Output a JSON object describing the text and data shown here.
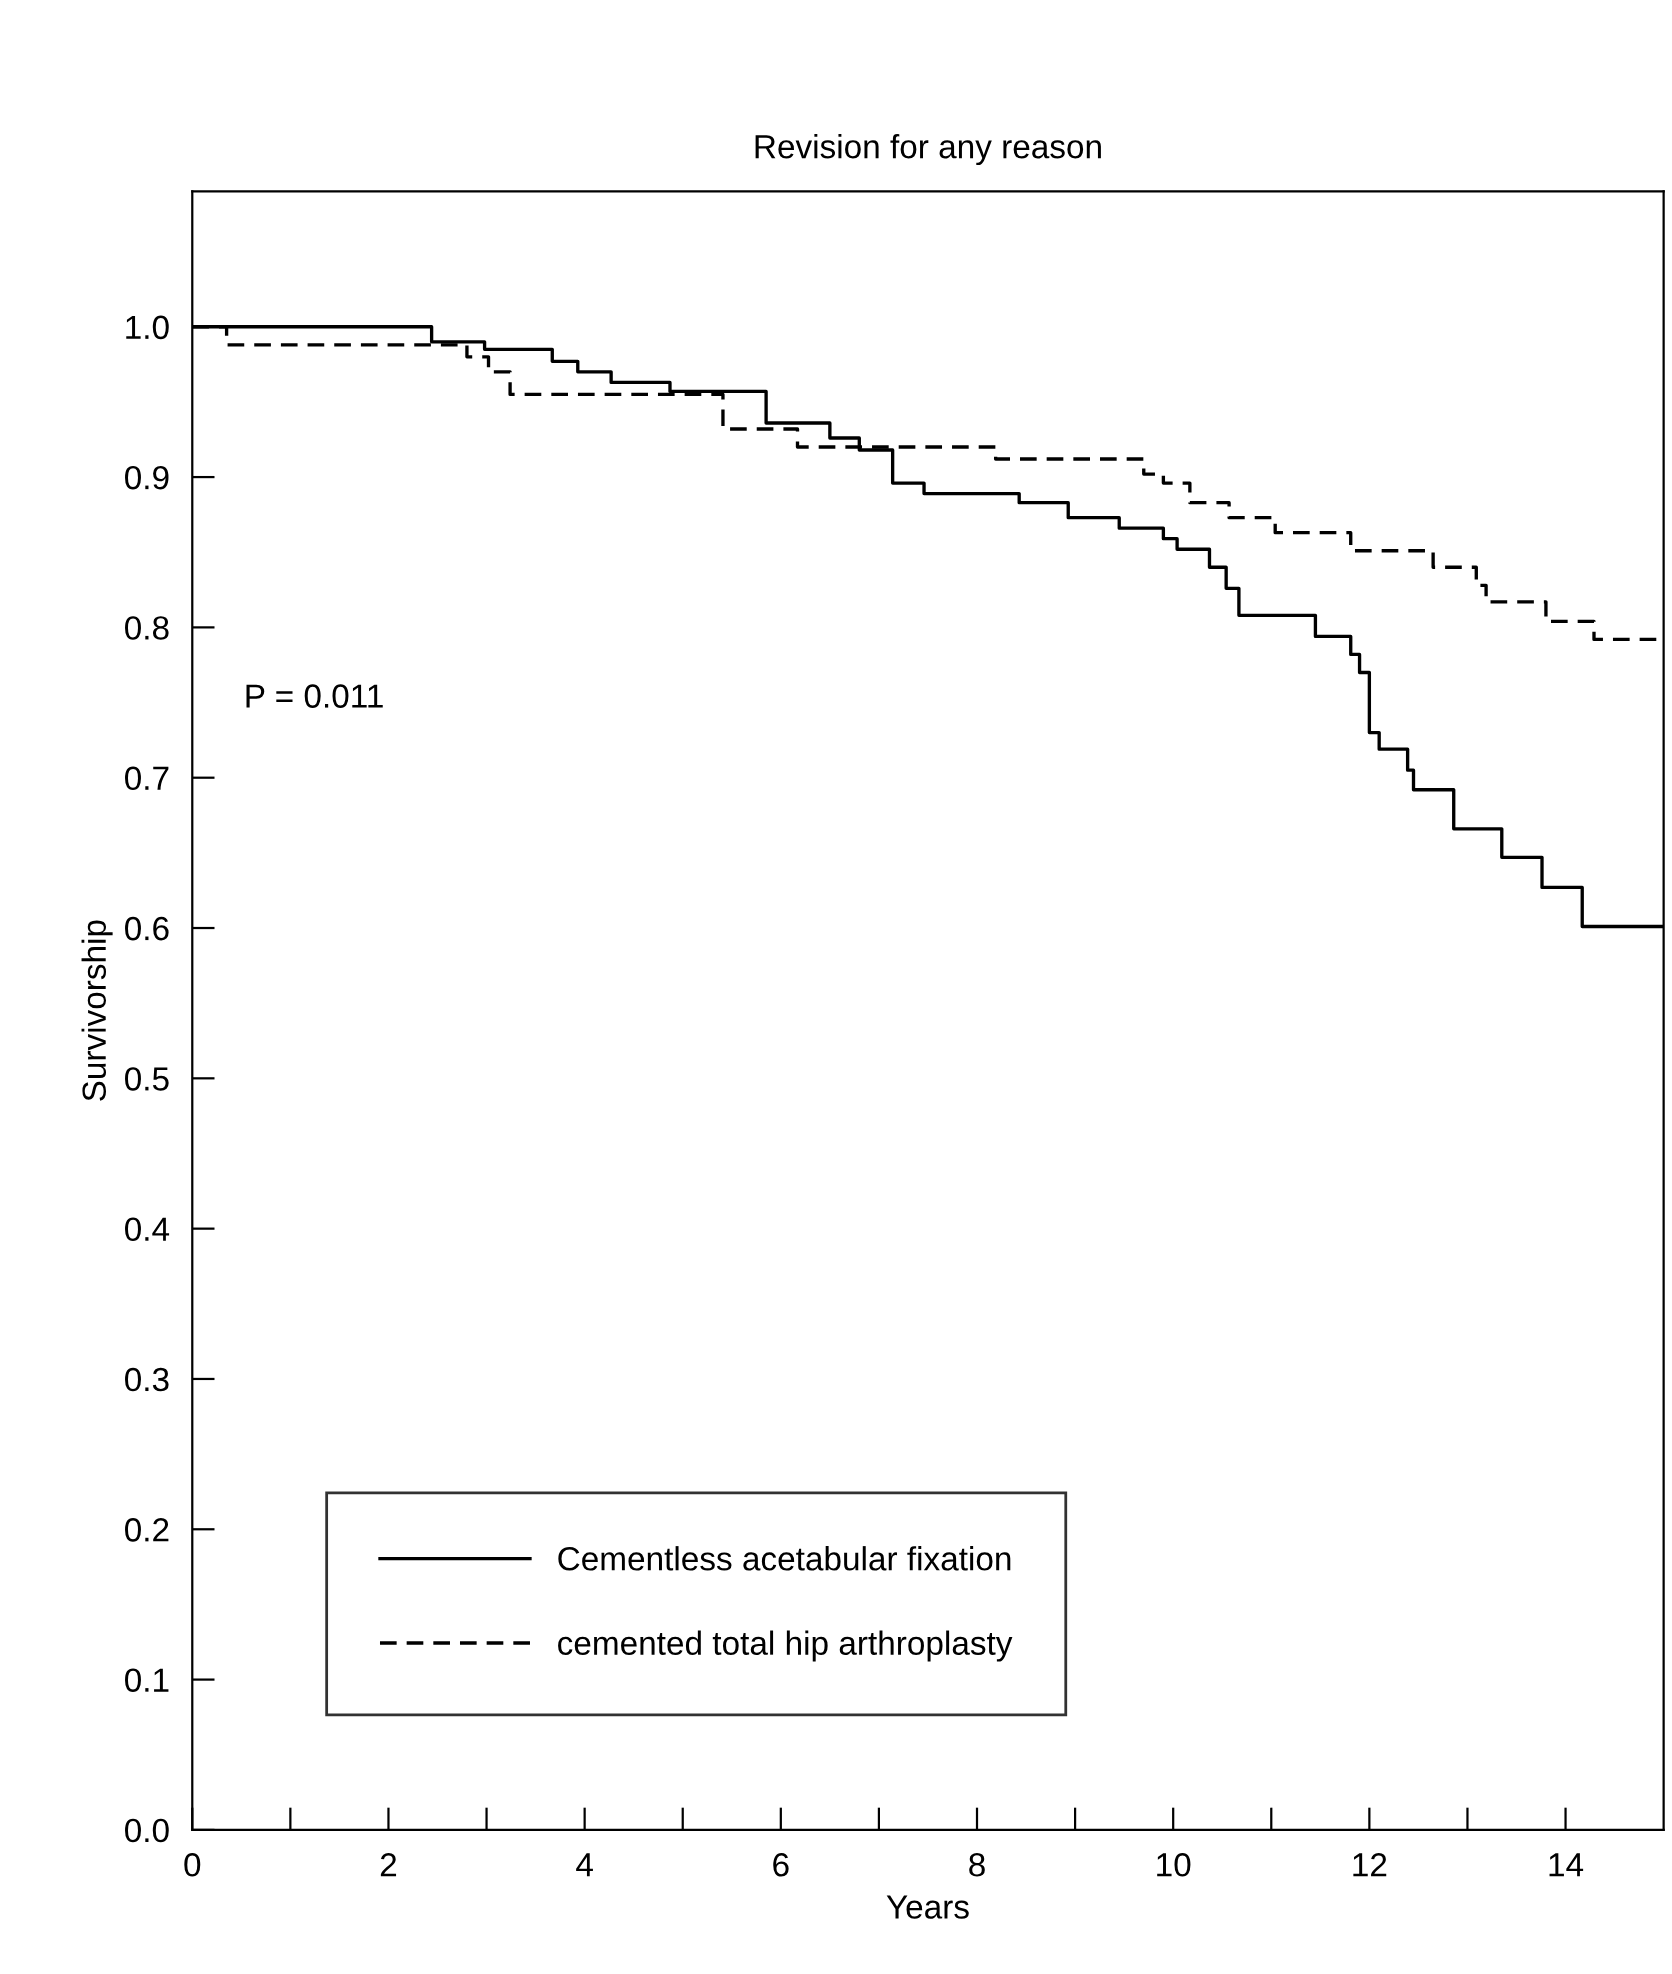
{
  "chart_data": {
    "type": "step",
    "title": "Revision for any reason",
    "xlabel": "Years",
    "ylabel": "Survivorship",
    "annotations": [
      "P = 0.011"
    ],
    "xlim": [
      0,
      15
    ],
    "ylim": [
      0,
      1.09
    ],
    "xticks": [
      0,
      {
        "value": 1,
        "label": null
      },
      2,
      {
        "value": 3,
        "label": null
      },
      4,
      {
        "value": 5,
        "label": null
      },
      6,
      {
        "value": 7,
        "label": null
      },
      8,
      {
        "value": 9,
        "label": null
      },
      10,
      {
        "value": 11,
        "label": null
      },
      12,
      {
        "value": 13,
        "label": null
      },
      14
    ],
    "yticks": [
      {
        "value": 0,
        "label": "0.0"
      },
      0.1,
      0.2,
      0.3,
      0.4,
      0.5,
      0.6,
      0.7,
      0.8,
      0.9,
      {
        "value": 1,
        "label": "1.0"
      }
    ],
    "grid": false,
    "legend": "bottom left",
    "marker": "none",
    "series": [
      {
        "name": "Cementless acetabular fixation",
        "color": "#000000",
        "line_style": "solid",
        "x": [
          0,
          2.44,
          2.98,
          3.67,
          3.93,
          4.27,
          4.87,
          5.85,
          6.5,
          6.8,
          7.14,
          7.46,
          8.43,
          8.93,
          9.45,
          9.9,
          10.04,
          10.37,
          10.54,
          10.67,
          11.45,
          11.81,
          11.9,
          12.0,
          12.1,
          12.39,
          12.45,
          12.86,
          13.35,
          13.76,
          14.17,
          15
        ],
        "values": [
          1.0,
          0.99,
          0.985,
          0.977,
          0.97,
          0.963,
          0.957,
          0.936,
          0.926,
          0.918,
          0.896,
          0.889,
          0.883,
          0.873,
          0.866,
          0.859,
          0.852,
          0.84,
          0.826,
          0.808,
          0.794,
          0.782,
          0.77,
          0.73,
          0.719,
          0.705,
          0.692,
          0.666,
          0.647,
          0.627,
          0.601,
          0.601
        ]
      },
      {
        "name": "cemented total hip arthroplasty",
        "color": "#000000",
        "line_style": "dashed",
        "x": [
          0,
          0.35,
          2.8,
          3.02,
          3.24,
          5.41,
          6.17,
          8.19,
          9.7,
          9.9,
          10.17,
          10.57,
          11.04,
          11.81,
          12.65,
          13.09,
          13.19,
          13.8,
          14.29,
          15
        ],
        "values": [
          1.0,
          0.988,
          0.98,
          0.97,
          0.955,
          0.932,
          0.92,
          0.912,
          0.902,
          0.896,
          0.883,
          0.873,
          0.863,
          0.851,
          0.84,
          0.828,
          0.817,
          0.804,
          0.792,
          0.792
        ]
      }
    ]
  }
}
